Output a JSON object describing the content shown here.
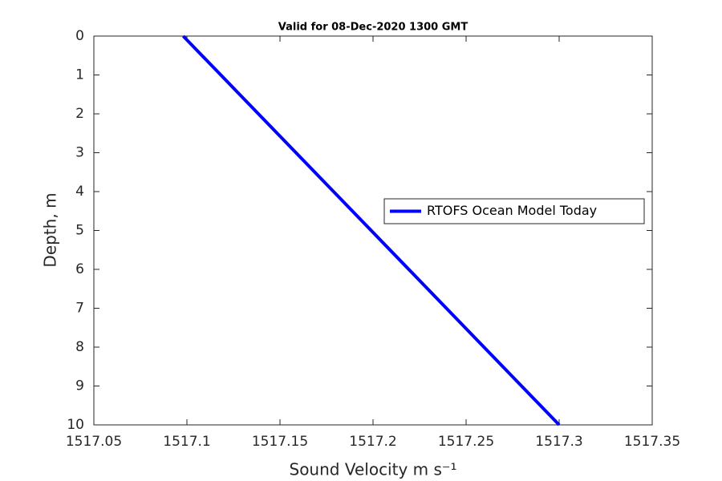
{
  "chart_data": {
    "type": "line",
    "title": "Valid for 08-Dec-2020 1300 GMT",
    "xlabel": "Sound Velocity m s⁻¹",
    "ylabel": "Depth, m",
    "xlim": [
      1517.05,
      1517.35
    ],
    "xticks": [
      1517.05,
      1517.1,
      1517.15,
      1517.2,
      1517.25,
      1517.3,
      1517.35
    ],
    "ylim": [
      0,
      10
    ],
    "yticks": [
      0,
      1,
      2,
      3,
      4,
      5,
      6,
      7,
      8,
      9,
      10
    ],
    "y_reversed": true,
    "grid": false,
    "legend_position": "right",
    "series": [
      {
        "name": "RTOFS Ocean Model Today",
        "color": "#0000ff",
        "x": [
          1517.098,
          1517.3
        ],
        "values": [
          0,
          10
        ]
      }
    ]
  }
}
